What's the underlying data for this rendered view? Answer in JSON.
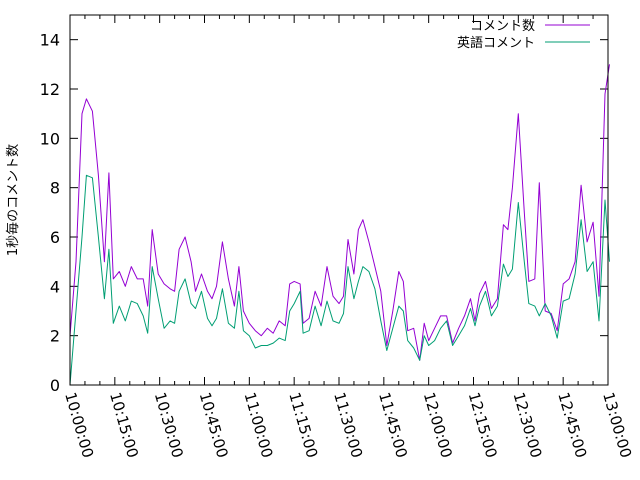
{
  "chart_data": {
    "type": "line",
    "ylabel": "1秒毎のコメント数",
    "ylim": [
      0,
      15
    ],
    "yticks": [
      0,
      2,
      4,
      6,
      8,
      10,
      12,
      14
    ],
    "xlim_minutes": [
      0,
      180
    ],
    "xtick_minutes": [
      0,
      15,
      30,
      45,
      60,
      75,
      90,
      105,
      120,
      135,
      150,
      165,
      180
    ],
    "xtick_labels": [
      "10:00:00",
      "10:15:00",
      "10:30:00",
      "10:45:00",
      "11:00:00",
      "11:15:00",
      "11:30:00",
      "11:45:00",
      "12:00:00",
      "12:15:00",
      "12:30:00",
      "12:45:00",
      "13:00:00"
    ],
    "legend_position": "top-right",
    "grid": false,
    "series": [
      {
        "name": "コメント数",
        "color": "#9400d3",
        "points": [
          [
            0,
            2.0
          ],
          [
            2,
            5.0
          ],
          [
            4,
            11.0
          ],
          [
            5.5,
            11.6
          ],
          [
            7.5,
            11.1
          ],
          [
            9.5,
            8.5
          ],
          [
            11.5,
            5.0
          ],
          [
            13,
            8.6
          ],
          [
            14.5,
            4.3
          ],
          [
            16.5,
            4.6
          ],
          [
            18.5,
            4.0
          ],
          [
            20.5,
            4.8
          ],
          [
            22.5,
            4.3
          ],
          [
            24.5,
            4.3
          ],
          [
            26,
            3.2
          ],
          [
            27.5,
            6.3
          ],
          [
            29.5,
            4.5
          ],
          [
            31.5,
            4.1
          ],
          [
            33.5,
            3.9
          ],
          [
            35,
            3.8
          ],
          [
            36.5,
            5.5
          ],
          [
            38.5,
            6.0
          ],
          [
            40.5,
            5.0
          ],
          [
            42,
            3.8
          ],
          [
            44,
            4.5
          ],
          [
            46,
            3.8
          ],
          [
            47.5,
            3.5
          ],
          [
            49,
            4.0
          ],
          [
            51,
            5.8
          ],
          [
            53,
            4.3
          ],
          [
            55,
            3.2
          ],
          [
            56.5,
            4.8
          ],
          [
            58,
            3.0
          ],
          [
            60,
            2.5
          ],
          [
            62,
            2.2
          ],
          [
            64,
            2.0
          ],
          [
            66,
            2.3
          ],
          [
            68,
            2.1
          ],
          [
            70,
            2.6
          ],
          [
            72,
            2.4
          ],
          [
            73.5,
            4.1
          ],
          [
            75,
            4.2
          ],
          [
            77,
            4.1
          ],
          [
            78,
            2.5
          ],
          [
            80,
            2.7
          ],
          [
            82,
            3.8
          ],
          [
            84,
            3.2
          ],
          [
            86,
            4.8
          ],
          [
            88,
            3.6
          ],
          [
            90,
            3.3
          ],
          [
            91.5,
            3.6
          ],
          [
            93,
            5.9
          ],
          [
            95,
            4.5
          ],
          [
            96.5,
            6.3
          ],
          [
            98,
            6.7
          ],
          [
            100,
            5.8
          ],
          [
            102,
            4.8
          ],
          [
            104,
            3.8
          ],
          [
            106,
            1.6
          ],
          [
            108,
            3.0
          ],
          [
            110,
            4.6
          ],
          [
            111.5,
            4.2
          ],
          [
            113,
            2.2
          ],
          [
            115,
            2.3
          ],
          [
            117,
            1.0
          ],
          [
            118.5,
            2.5
          ],
          [
            120,
            1.8
          ],
          [
            122,
            2.3
          ],
          [
            124,
            2.8
          ],
          [
            126,
            2.8
          ],
          [
            128,
            1.7
          ],
          [
            130,
            2.3
          ],
          [
            132,
            2.8
          ],
          [
            134,
            3.5
          ],
          [
            135.5,
            2.6
          ],
          [
            137,
            3.7
          ],
          [
            139,
            4.2
          ],
          [
            141,
            3.1
          ],
          [
            143,
            3.5
          ],
          [
            145,
            6.5
          ],
          [
            146.5,
            6.3
          ],
          [
            148,
            8.0
          ],
          [
            150,
            11.0
          ],
          [
            152,
            7.0
          ],
          [
            153.5,
            4.2
          ],
          [
            155.5,
            4.3
          ],
          [
            157,
            8.2
          ],
          [
            159,
            3.0
          ],
          [
            161,
            2.9
          ],
          [
            163,
            2.2
          ],
          [
            165,
            4.1
          ],
          [
            167,
            4.3
          ],
          [
            169,
            5.0
          ],
          [
            171,
            8.1
          ],
          [
            173,
            5.8
          ],
          [
            175,
            6.6
          ],
          [
            177,
            3.6
          ],
          [
            179,
            11.8
          ],
          [
            180.5,
            13.0
          ]
        ]
      },
      {
        "name": "英語コメント",
        "color": "#009e73",
        "points": [
          [
            0,
            0.0
          ],
          [
            2,
            3.0
          ],
          [
            4,
            6.0
          ],
          [
            5.5,
            8.5
          ],
          [
            7.5,
            8.4
          ],
          [
            9.5,
            6.0
          ],
          [
            11.5,
            3.5
          ],
          [
            13,
            5.5
          ],
          [
            14.5,
            2.5
          ],
          [
            16.5,
            3.2
          ],
          [
            18.5,
            2.6
          ],
          [
            20.5,
            3.4
          ],
          [
            22.5,
            3.3
          ],
          [
            24.5,
            2.8
          ],
          [
            26,
            2.1
          ],
          [
            27.5,
            4.8
          ],
          [
            29.5,
            3.5
          ],
          [
            31.5,
            2.3
          ],
          [
            33.5,
            2.6
          ],
          [
            35,
            2.5
          ],
          [
            36.5,
            3.8
          ],
          [
            38.5,
            4.3
          ],
          [
            40.5,
            3.3
          ],
          [
            42,
            3.1
          ],
          [
            44,
            3.8
          ],
          [
            46,
            2.7
          ],
          [
            47.5,
            2.4
          ],
          [
            49,
            2.7
          ],
          [
            51,
            3.9
          ],
          [
            53,
            2.5
          ],
          [
            55,
            2.3
          ],
          [
            56.5,
            3.8
          ],
          [
            58,
            2.2
          ],
          [
            60,
            2.0
          ],
          [
            62,
            1.5
          ],
          [
            64,
            1.6
          ],
          [
            66,
            1.6
          ],
          [
            68,
            1.7
          ],
          [
            70,
            1.9
          ],
          [
            72,
            1.8
          ],
          [
            73.5,
            3.0
          ],
          [
            75,
            3.3
          ],
          [
            77,
            3.8
          ],
          [
            78,
            2.1
          ],
          [
            80,
            2.2
          ],
          [
            82,
            3.2
          ],
          [
            84,
            2.4
          ],
          [
            86,
            3.4
          ],
          [
            88,
            2.6
          ],
          [
            90,
            2.5
          ],
          [
            91.5,
            2.9
          ],
          [
            93,
            4.8
          ],
          [
            95,
            3.5
          ],
          [
            96.5,
            4.2
          ],
          [
            98,
            4.8
          ],
          [
            100,
            4.6
          ],
          [
            102,
            3.9
          ],
          [
            104,
            2.6
          ],
          [
            106,
            1.4
          ],
          [
            108,
            2.3
          ],
          [
            110,
            3.2
          ],
          [
            111.5,
            3.0
          ],
          [
            113,
            1.8
          ],
          [
            115,
            1.5
          ],
          [
            117,
            1.0
          ],
          [
            118.5,
            2.0
          ],
          [
            120,
            1.6
          ],
          [
            122,
            1.8
          ],
          [
            124,
            2.3
          ],
          [
            126,
            2.6
          ],
          [
            128,
            1.6
          ],
          [
            130,
            2.0
          ],
          [
            132,
            2.4
          ],
          [
            134,
            3.1
          ],
          [
            135.5,
            2.4
          ],
          [
            137,
            3.2
          ],
          [
            139,
            3.8
          ],
          [
            141,
            2.8
          ],
          [
            143,
            3.2
          ],
          [
            145,
            4.9
          ],
          [
            146.5,
            4.4
          ],
          [
            148,
            4.7
          ],
          [
            150,
            7.4
          ],
          [
            152,
            5.0
          ],
          [
            153.5,
            3.3
          ],
          [
            155.5,
            3.2
          ],
          [
            157,
            2.8
          ],
          [
            159,
            3.3
          ],
          [
            161,
            2.8
          ],
          [
            163,
            1.9
          ],
          [
            165,
            3.4
          ],
          [
            167,
            3.5
          ],
          [
            169,
            4.5
          ],
          [
            171,
            6.7
          ],
          [
            173,
            4.6
          ],
          [
            175,
            5.0
          ],
          [
            177,
            2.6
          ],
          [
            179,
            7.5
          ],
          [
            180.5,
            5.0
          ]
        ]
      }
    ]
  }
}
